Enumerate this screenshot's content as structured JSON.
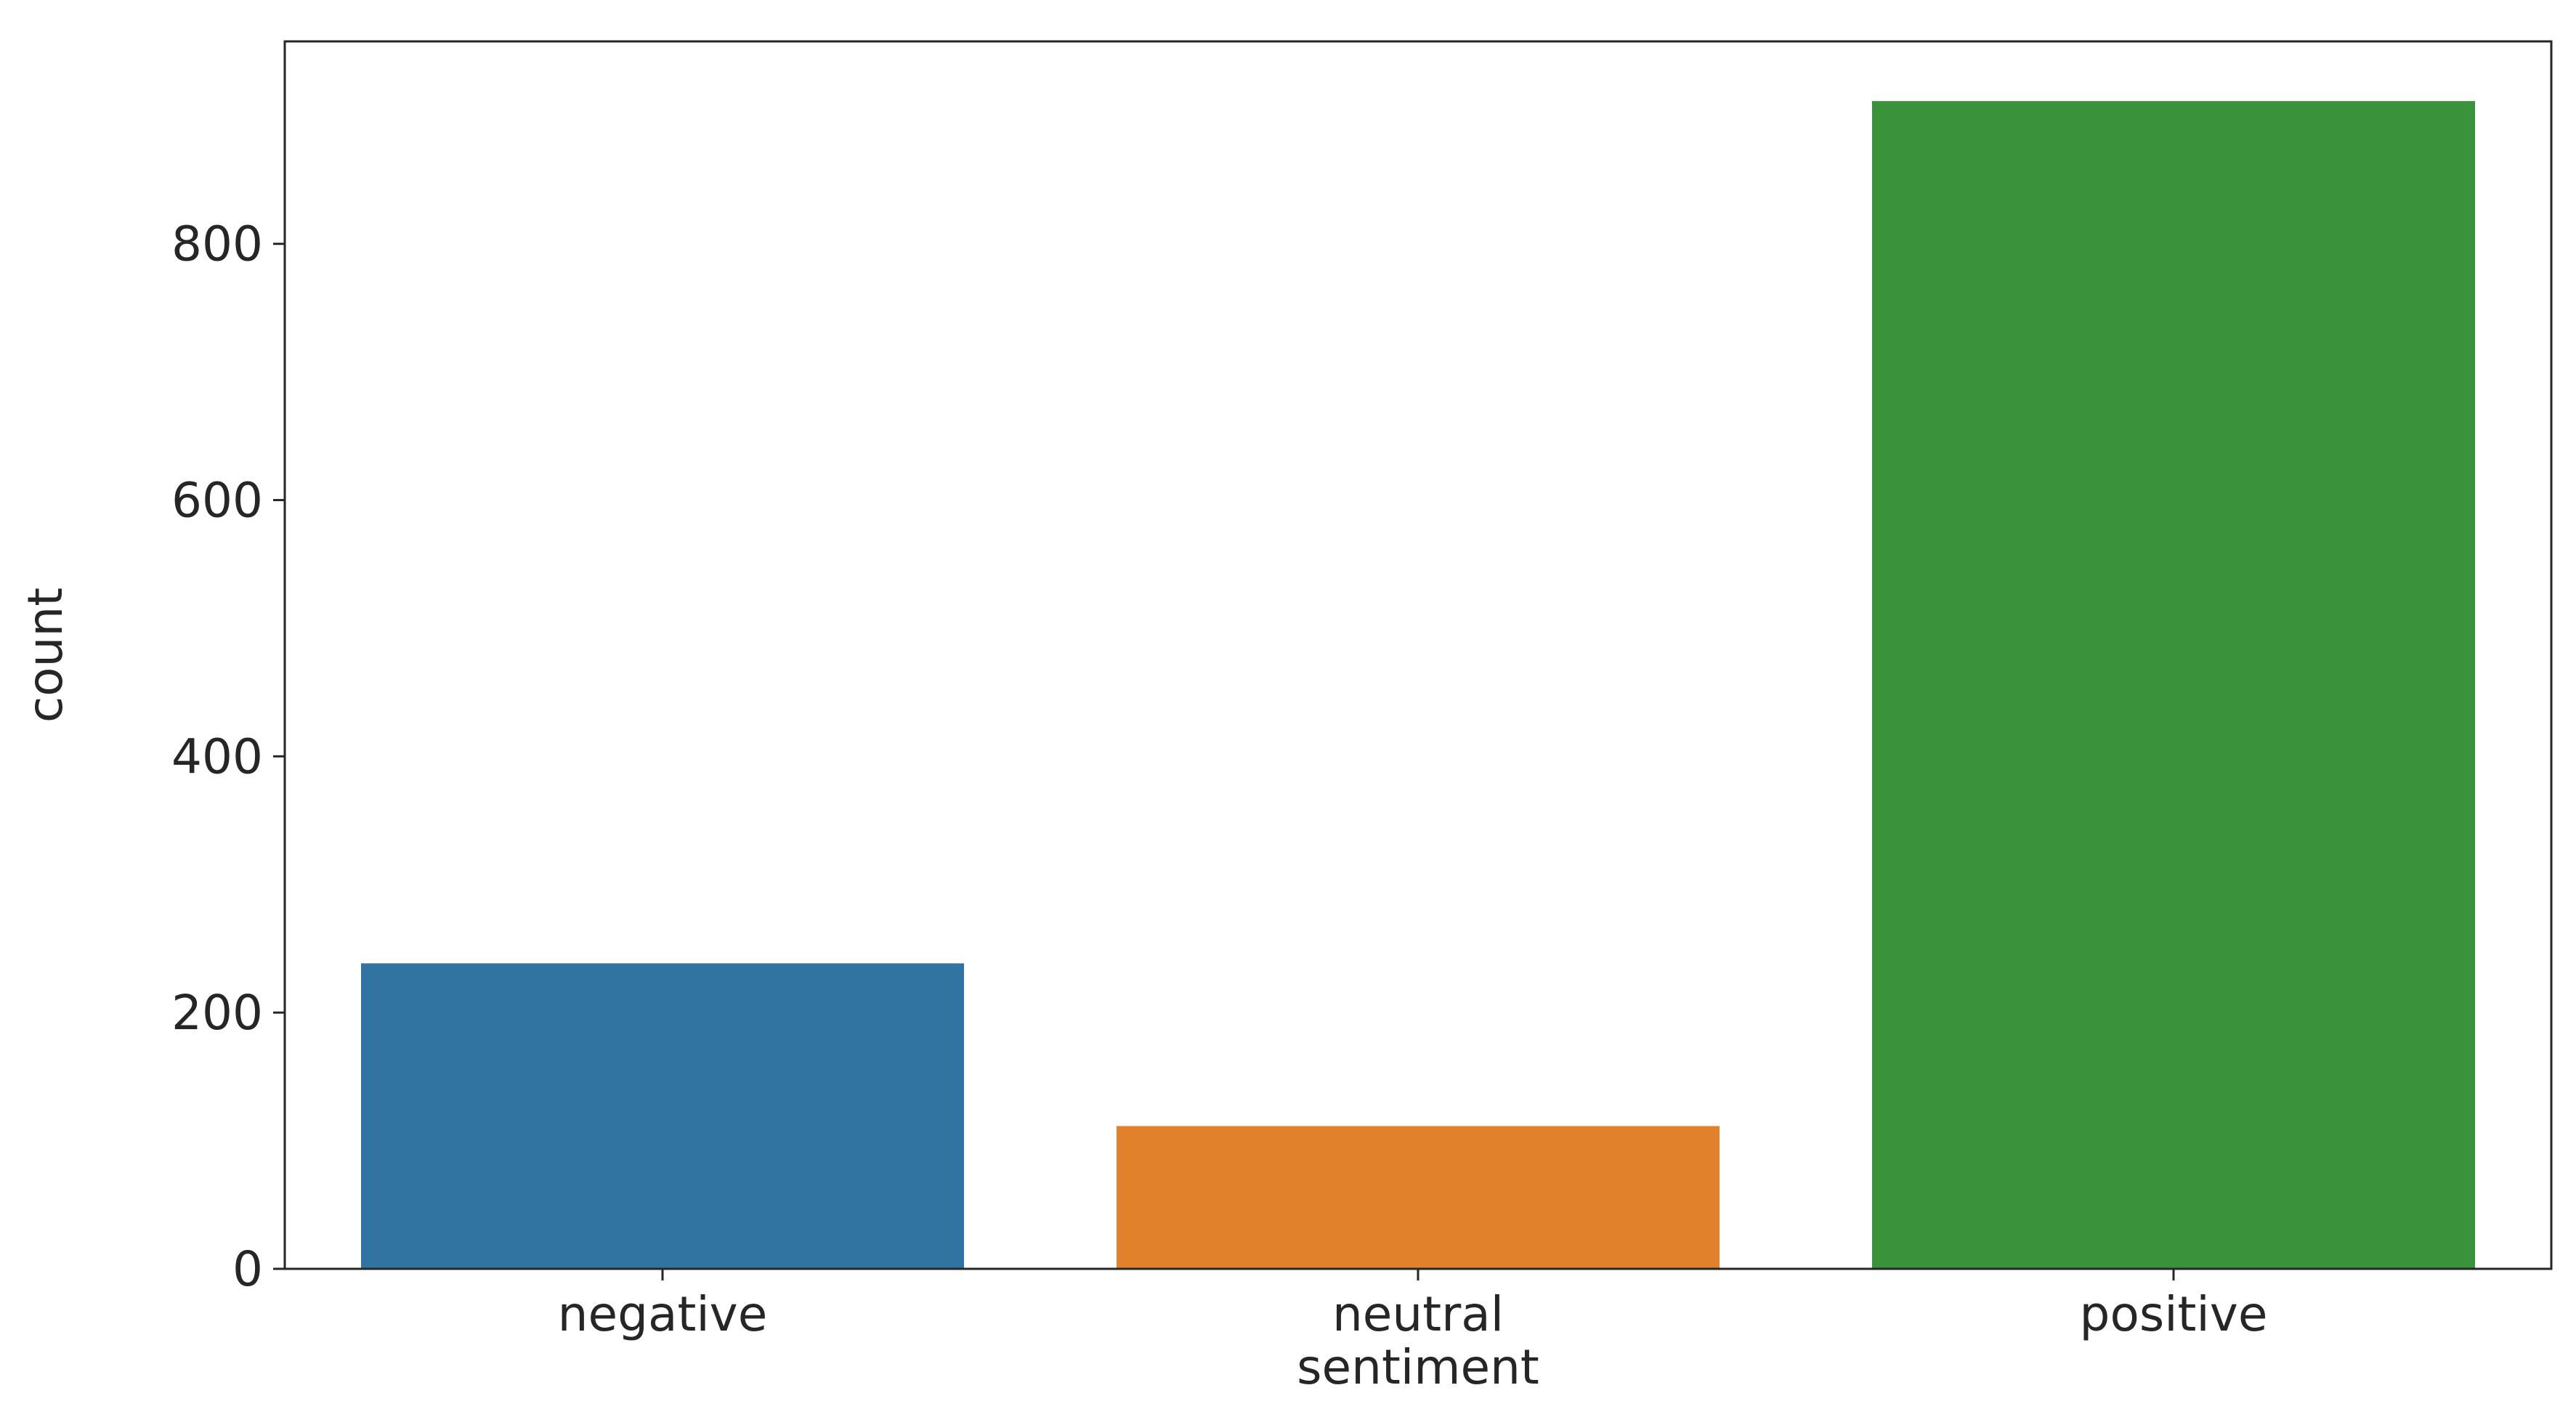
{
  "chart_data": {
    "type": "bar",
    "x_label": "sentiment",
    "y_label": "count",
    "categories": [
      "negative",
      "neutral",
      "positive"
    ],
    "values": [
      239,
      112,
      912
    ],
    "colors": [
      "#3274a1",
      "#e1812c",
      "#3a923a"
    ],
    "ylim": [
      0,
      958
    ],
    "yticks": [
      0,
      200,
      400,
      600,
      800
    ],
    "grid": false
  }
}
